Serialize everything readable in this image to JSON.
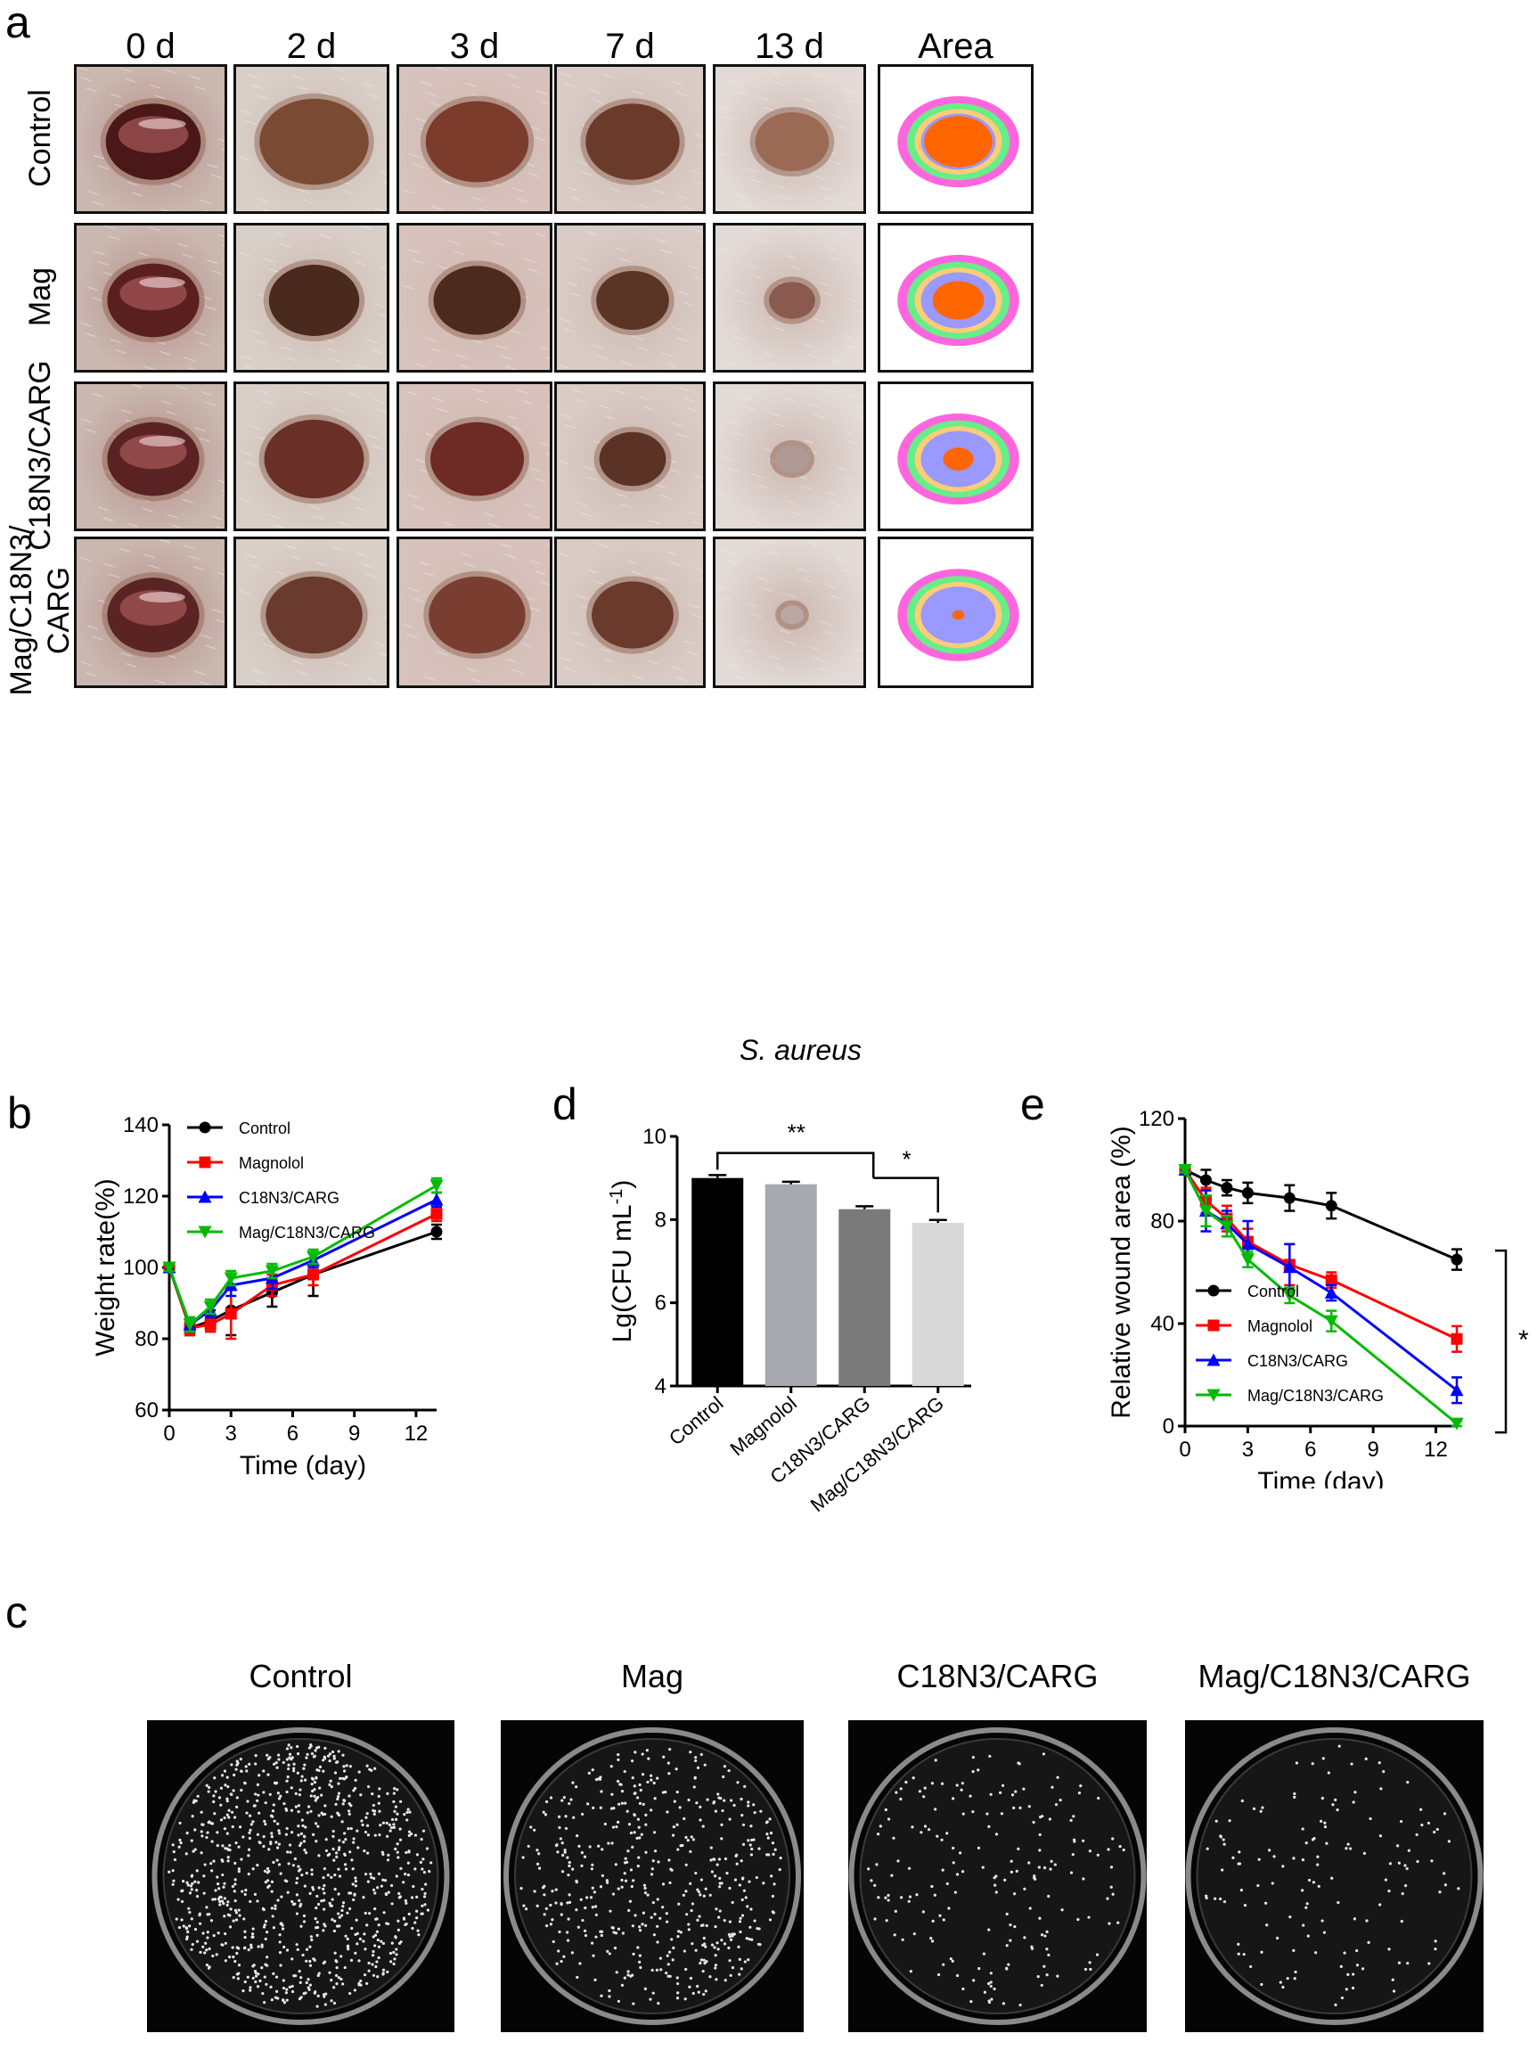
{
  "panel_a": {
    "letter": "a",
    "columns": [
      "0 d",
      "2 d",
      "3 d",
      "7 d",
      "13 d",
      "Area"
    ],
    "rows": [
      "Control",
      "Mag",
      "C18N3/CARG",
      "Mag/C18N3/CARG"
    ],
    "row_label_lines": [
      [
        "Control"
      ],
      [
        "Mag"
      ],
      [
        "C18N3/CARG"
      ],
      [
        "Mag/C18N3/",
        "CARG"
      ]
    ],
    "caption": "S. aureus",
    "area_colors": [
      "#ff66dd",
      "#66ee88",
      "#ffcc77",
      "#9999ff",
      "#ff6600"
    ],
    "remaining_area_fraction_day13": [
      0.3,
      0.17,
      0.06,
      0.01
    ]
  },
  "panel_b": {
    "letter": "b",
    "chart_data": {
      "type": "line",
      "xlabel": "Time (day)",
      "ylabel": "Weight rate(%)",
      "xlim": [
        0,
        13
      ],
      "ylim": [
        60,
        140
      ],
      "xticks": [
        0,
        3,
        6,
        9,
        12
      ],
      "yticks": [
        60,
        80,
        100,
        120,
        140
      ],
      "x": [
        0,
        1,
        2,
        3,
        5,
        7,
        13
      ],
      "legend": "top-left",
      "series": [
        {
          "name": "Control",
          "color": "#000000",
          "marker": "circle",
          "values": [
            100,
            83,
            85,
            88,
            93,
            98,
            110
          ],
          "err": [
            1,
            2,
            3,
            7,
            4,
            6,
            2
          ]
        },
        {
          "name": "Magnolol",
          "color": "#ff0000",
          "marker": "square",
          "values": [
            100,
            83,
            84,
            87,
            95,
            98,
            115
          ],
          "err": [
            1,
            2,
            2,
            7,
            3,
            3,
            2
          ]
        },
        {
          "name": "C18N3/CARG",
          "color": "#0000ff",
          "marker": "triangle-up",
          "values": [
            100,
            84,
            88,
            95,
            97,
            102,
            119
          ],
          "err": [
            1,
            2,
            2,
            3,
            3,
            2,
            2
          ]
        },
        {
          "name": "Mag/C18N3/CARG",
          "color": "#00bb00",
          "marker": "triangle-down",
          "values": [
            100,
            84,
            89,
            97,
            99,
            103,
            123
          ],
          "err": [
            1,
            2,
            2,
            2,
            2,
            2,
            2
          ]
        }
      ]
    }
  },
  "panel_d": {
    "letter": "d",
    "chart_data": {
      "type": "bar",
      "ylabel": "Lg(CFU mL",
      "ylabel_sup": "-1",
      "ylabel_end": ")",
      "ylim": [
        4,
        10
      ],
      "yticks": [
        4,
        6,
        8,
        10
      ],
      "categories": [
        "Control",
        "Magnolol",
        "C18N3/CARG",
        "Mag/C18N3/CARG"
      ],
      "values": [
        9.0,
        8.85,
        8.25,
        7.92
      ],
      "err": [
        0.07,
        0.06,
        0.07,
        0.07
      ],
      "colors": [
        "#000000",
        "#a8a8b0",
        "#7a7a7a",
        "#d8d8d8"
      ],
      "annotations": [
        {
          "from": 0,
          "to": 2,
          "text": "**"
        },
        {
          "from": 2,
          "to": 3,
          "text": "*"
        }
      ]
    }
  },
  "panel_e": {
    "letter": "e",
    "chart_data": {
      "type": "line",
      "xlabel": "Time (day)",
      "ylabel": "Relative wound area (%)",
      "xlim": [
        0,
        13
      ],
      "ylim": [
        0,
        120
      ],
      "xticks": [
        0,
        3,
        6,
        9,
        12
      ],
      "yticks": [
        0,
        40,
        80,
        120
      ],
      "x": [
        0,
        1,
        2,
        3,
        5,
        7,
        13
      ],
      "legend": "bottom-left",
      "significance": "*",
      "series": [
        {
          "name": "Control",
          "color": "#000000",
          "marker": "circle",
          "values": [
            100,
            96,
            93,
            91,
            89,
            86,
            65
          ],
          "err": [
            1,
            4,
            3,
            4,
            5,
            5,
            4
          ]
        },
        {
          "name": "Magnolol",
          "color": "#ff0000",
          "marker": "square",
          "values": [
            100,
            88,
            81,
            72,
            63,
            57,
            34
          ],
          "err": [
            1,
            5,
            5,
            5,
            8,
            3,
            5
          ]
        },
        {
          "name": "C18N3/CARG",
          "color": "#0000ff",
          "marker": "triangle-up",
          "values": [
            100,
            84,
            79,
            71,
            62,
            52,
            14
          ],
          "err": [
            1,
            8,
            5,
            9,
            9,
            3,
            5
          ]
        },
        {
          "name": "Mag/C18N3/CARG",
          "color": "#00bb00",
          "marker": "triangle-down",
          "values": [
            100,
            84,
            78,
            65,
            51,
            41,
            1
          ],
          "err": [
            1,
            6,
            4,
            3,
            3,
            4,
            1
          ]
        }
      ]
    }
  },
  "panel_c": {
    "letter": "c",
    "plates": [
      {
        "title": "Control",
        "density": 1.0
      },
      {
        "title": "Mag",
        "density": 0.55
      },
      {
        "title": "C18N3/CARG",
        "density": 0.22
      },
      {
        "title": "Mag/C18N3/CARG",
        "density": 0.16
      }
    ]
  }
}
